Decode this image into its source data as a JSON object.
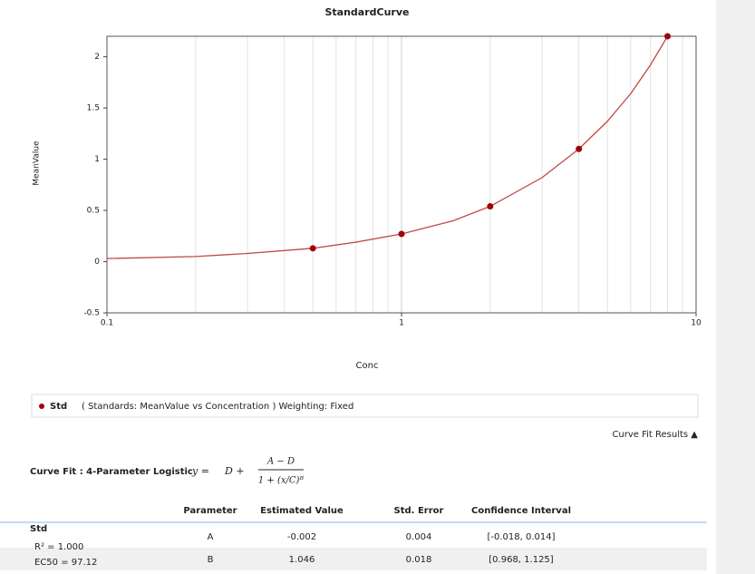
{
  "chart_data": {
    "type": "scatter",
    "title": "StandardCurve",
    "xlabel": "Conc",
    "ylabel": "MeanValue",
    "log_x": true,
    "grid": "x",
    "xlim": [
      0.1,
      10
    ],
    "xticks": [
      0.1,
      1,
      10
    ],
    "ylim": [
      -0.5,
      2.2
    ],
    "yticks": [
      -0.5,
      0,
      0.5,
      1,
      1.5,
      2
    ],
    "series": [
      {
        "name": "Std",
        "type": "scatter",
        "color": "#a00000",
        "x": [
          0.5,
          1,
          2,
          4,
          8
        ],
        "values": [
          0.13,
          0.27,
          0.54,
          1.1,
          2.2
        ]
      },
      {
        "type": "line",
        "color": "#c04848",
        "x": [
          0.1,
          0.2,
          0.3,
          0.5,
          0.7,
          1,
          1.5,
          2,
          3,
          4,
          5,
          6,
          7,
          8
        ],
        "values": [
          0.03,
          0.05,
          0.08,
          0.13,
          0.19,
          0.27,
          0.4,
          0.54,
          0.82,
          1.1,
          1.37,
          1.64,
          1.92,
          2.2
        ]
      }
    ],
    "legend_description": "( Standards: MeanValue vs Concentration ) Weighting: Fixed"
  },
  "results": {
    "toggle": "Curve Fit Results ▲",
    "fit_title": "Curve Fit : 4-Parameter Logistic",
    "formula": {
      "lhs": "y =",
      "d": "D +",
      "numerator": "A − D",
      "denominator": "1 + (x/C)ᴮ"
    },
    "group": {
      "name": "Std",
      "r2": "R² = 1.000",
      "ec50": "EC50 = 97.12"
    },
    "table": {
      "header": [
        "Parameter",
        "Estimated Value",
        "Std. Error",
        "Confidence Interval"
      ],
      "rows": [
        [
          "A",
          "-0.002",
          "0.004",
          "[-0.018, 0.014]"
        ],
        [
          "B",
          "1.046",
          "0.018",
          "[0.968, 1.125]"
        ]
      ]
    }
  }
}
